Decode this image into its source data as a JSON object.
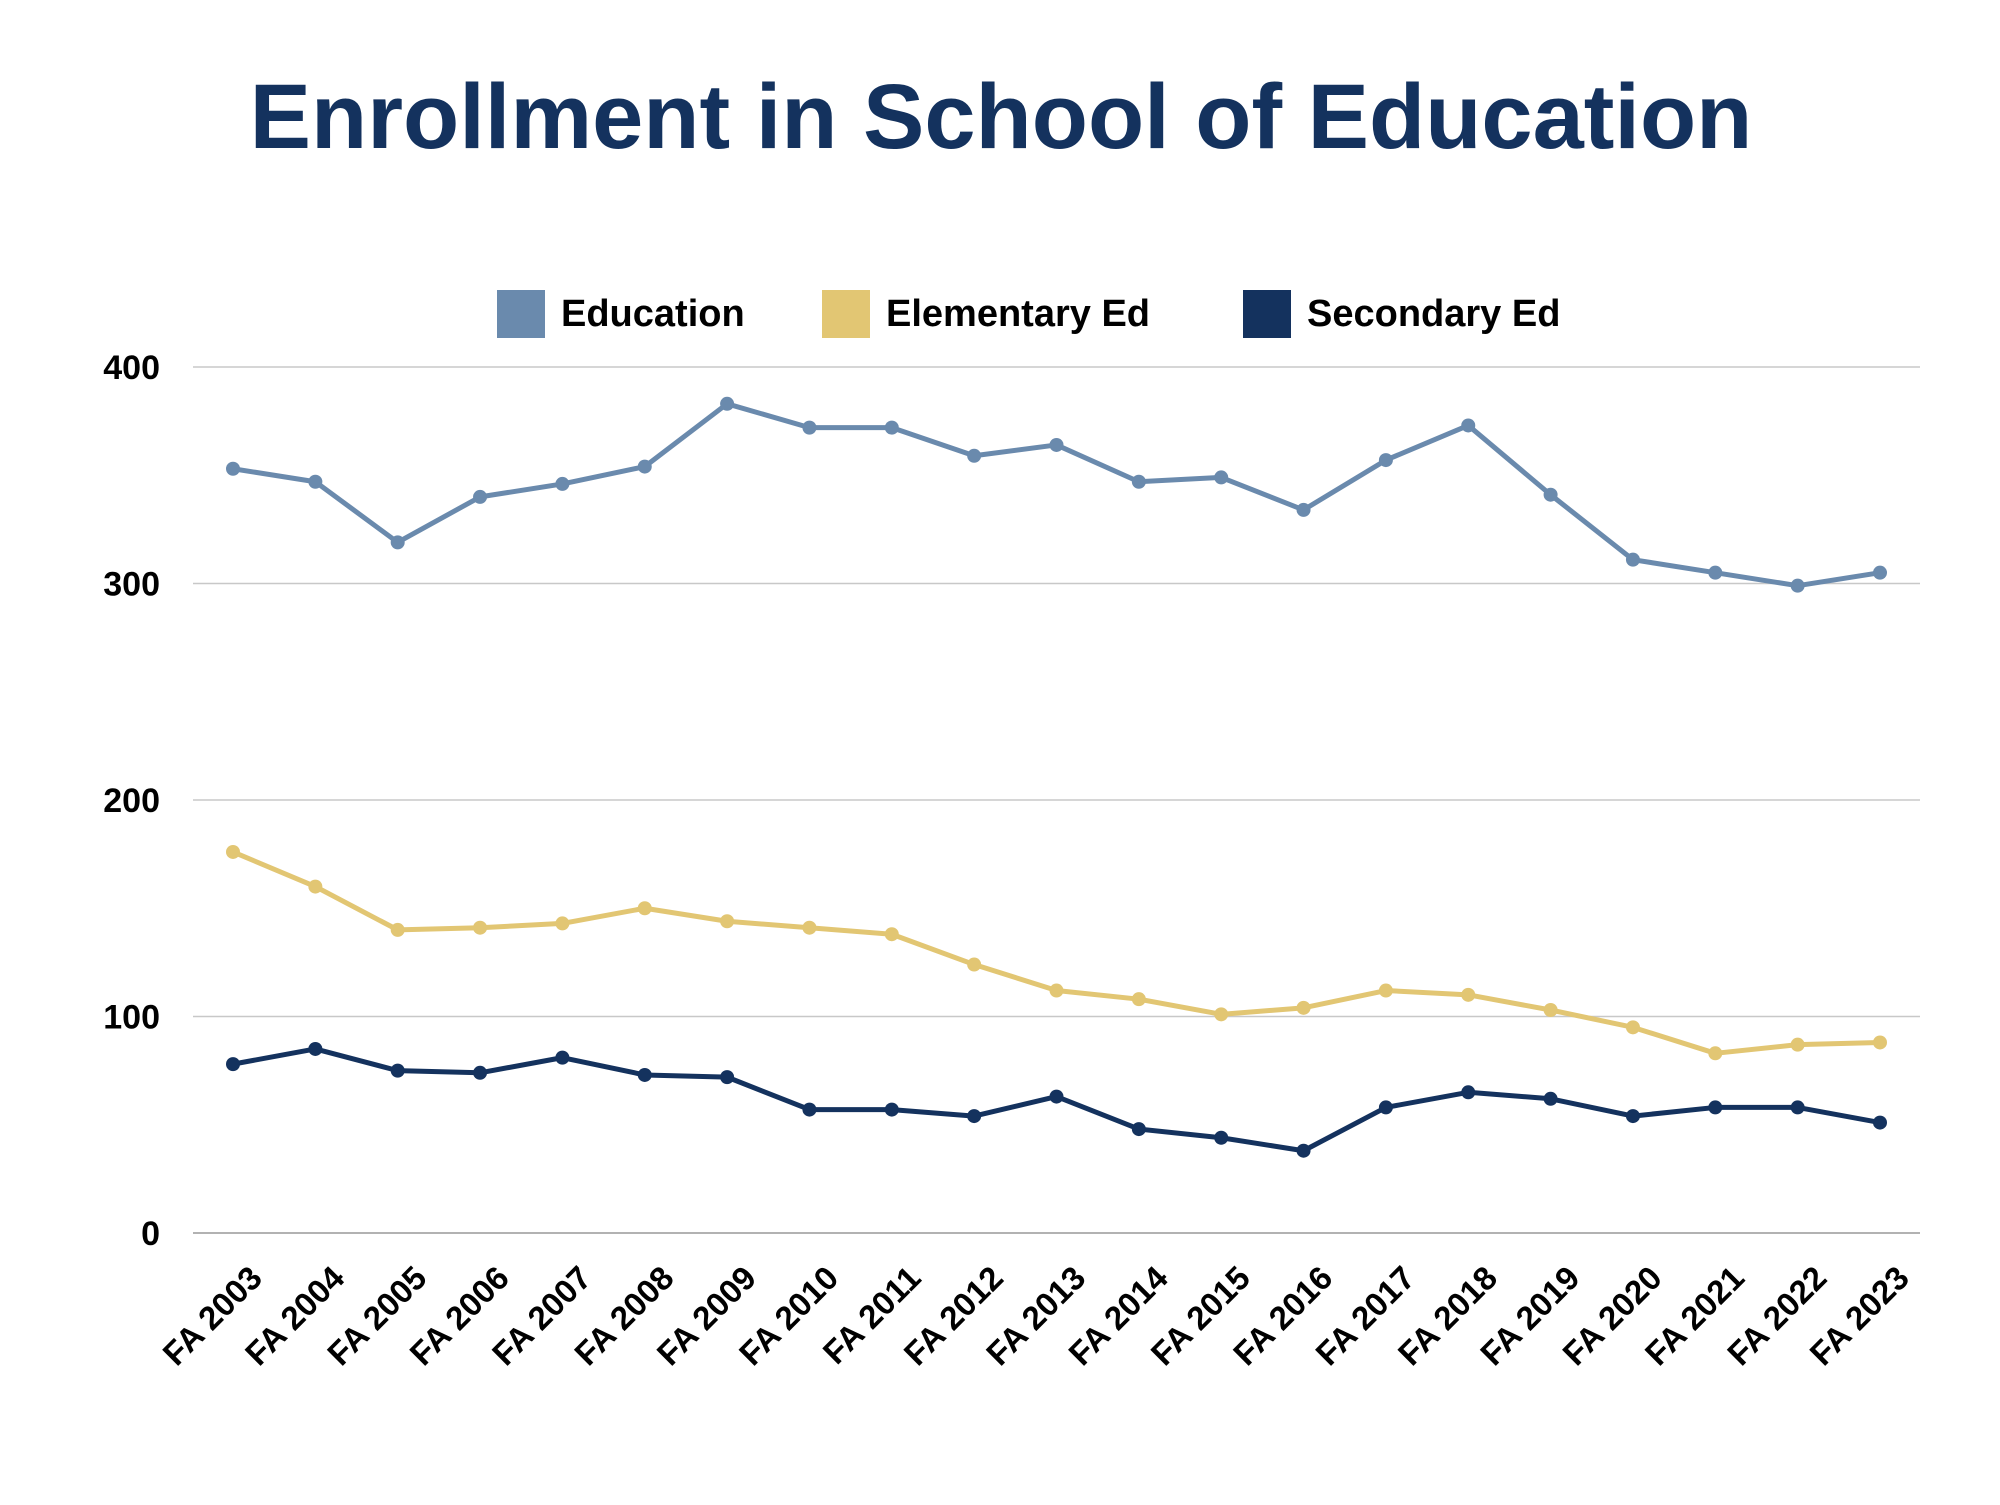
{
  "chart_data": {
    "type": "line",
    "title": "Enrollment in School of Education",
    "xlabel": "",
    "ylabel": "",
    "ylim": [
      0,
      400
    ],
    "yticks": [
      0,
      100,
      200,
      300,
      400
    ],
    "grid": true,
    "legend_position": "top",
    "categories": [
      "FA 2003",
      "FA 2004",
      "FA 2005",
      "FA 2006",
      "FA 2007",
      "FA 2008",
      "FA 2009",
      "FA 2010",
      "FA 2011",
      "FA 2012",
      "FA 2013",
      "FA 2014",
      "FA 2015",
      "FA 2016",
      "FA 2017",
      "FA 2018",
      "FA 2019",
      "FA 2020",
      "FA 2021",
      "FA 2022",
      "FA 2023"
    ],
    "series": [
      {
        "name": "Education",
        "color": "#6a8aad",
        "values": [
          353,
          347,
          319,
          340,
          346,
          354,
          383,
          372,
          372,
          359,
          364,
          347,
          349,
          334,
          357,
          373,
          341,
          311,
          305,
          299,
          305
        ]
      },
      {
        "name": "Elementary Ed",
        "color": "#e2c673",
        "values": [
          176,
          160,
          140,
          141,
          143,
          150,
          144,
          141,
          138,
          124,
          112,
          108,
          101,
          104,
          112,
          110,
          103,
          95,
          83,
          87,
          88
        ]
      },
      {
        "name": "Secondary Ed",
        "color": "#14325e",
        "values": [
          78,
          85,
          75,
          74,
          81,
          73,
          72,
          57,
          57,
          54,
          63,
          48,
          44,
          38,
          58,
          65,
          62,
          54,
          58,
          58,
          51
        ]
      }
    ]
  },
  "colors": {
    "title": "#14325e",
    "grid": "#c8c8c8",
    "text": "#000000"
  }
}
